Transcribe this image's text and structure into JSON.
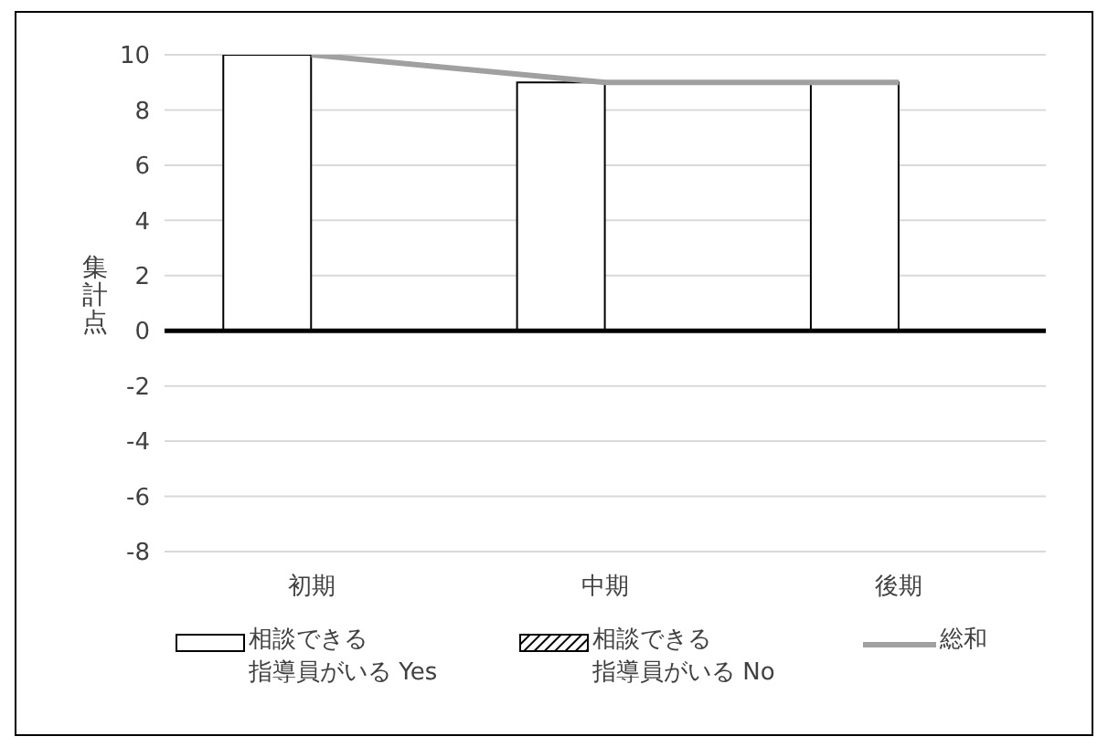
{
  "chart_data": {
    "type": "bar",
    "ylabel": "集計点",
    "categories": [
      "初期",
      "中期",
      "後期"
    ],
    "series": [
      {
        "name": "相談できる指導員がいる Yes",
        "color": "#ffffff",
        "values": [
          10,
          9,
          9
        ]
      },
      {
        "name": "相談できる指導員がいる No",
        "color": "#000000",
        "values": [
          0,
          0,
          0
        ]
      },
      {
        "name": "総和",
        "type": "line",
        "color": "#a0a0a0",
        "values": [
          10,
          9,
          9
        ]
      }
    ],
    "ylim": [
      -8,
      10
    ],
    "yticks": [
      -8,
      -6,
      -4,
      -2,
      0,
      2,
      4,
      6,
      8,
      10
    ],
    "grid": "y",
    "legend": "bottom"
  }
}
